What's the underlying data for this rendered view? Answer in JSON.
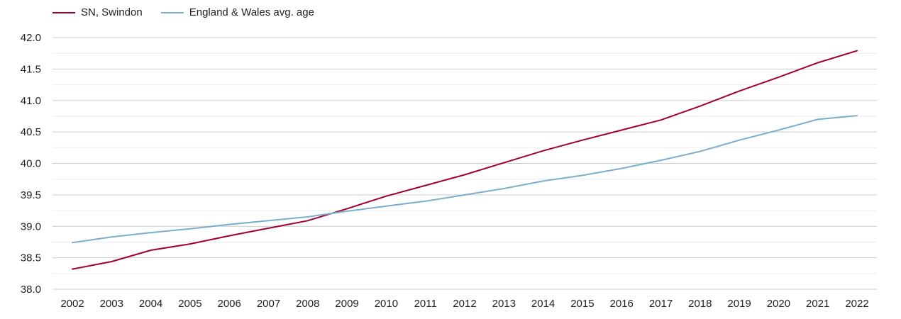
{
  "chart_data": {
    "type": "line",
    "categories": [
      "2002",
      "2003",
      "2004",
      "2005",
      "2006",
      "2007",
      "2008",
      "2009",
      "2010",
      "2011",
      "2012",
      "2013",
      "2014",
      "2015",
      "2016",
      "2017",
      "2018",
      "2019",
      "2020",
      "2021",
      "2022"
    ],
    "series": [
      {
        "name": "SN, Swindon",
        "color": "#a3002d",
        "values": [
          38.32,
          38.44,
          38.62,
          38.72,
          38.85,
          38.97,
          39.09,
          39.28,
          39.48,
          39.65,
          39.82,
          40.01,
          40.2,
          40.37,
          40.53,
          40.69,
          40.91,
          41.15,
          41.37,
          41.6,
          41.79
        ]
      },
      {
        "name": "England & Wales avg. age",
        "color": "#7aaecf",
        "values": [
          38.74,
          38.83,
          38.9,
          38.96,
          39.03,
          39.09,
          39.15,
          39.24,
          39.32,
          39.4,
          39.5,
          39.6,
          39.72,
          39.81,
          39.92,
          40.05,
          40.19,
          40.37,
          40.53,
          40.7,
          40.76
        ]
      }
    ],
    "ylim": [
      38.0,
      42.0
    ],
    "yticks": [
      "38.0",
      "38.5",
      "39.0",
      "39.5",
      "40.0",
      "40.5",
      "41.0",
      "41.5",
      "42.0"
    ],
    "grid": true,
    "legend_position": "top-left"
  }
}
